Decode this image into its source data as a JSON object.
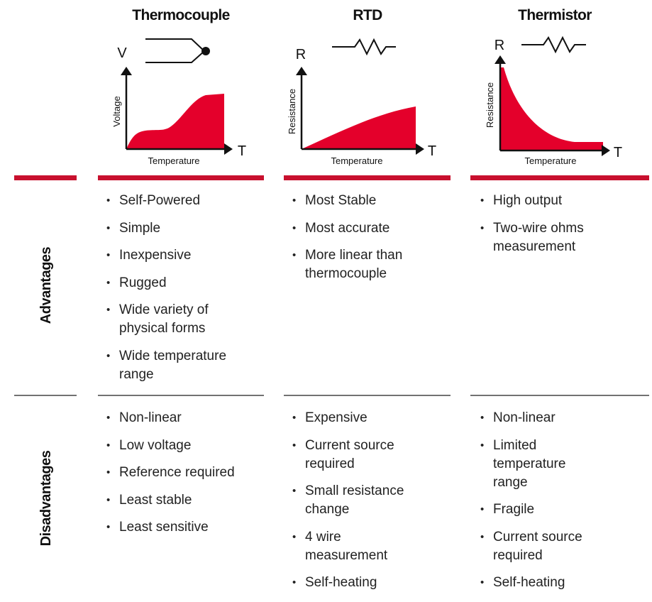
{
  "columns": [
    {
      "title": "Thermocouple",
      "icon": {
        "y_label": "V",
        "x_label": "T",
        "y_axis_title": "Voltage",
        "x_axis_title": "Temperature"
      },
      "advantages": [
        "Self-Powered",
        "Simple",
        "Inexpensive",
        "Rugged",
        "Wide variety of\nphysical forms",
        "Wide temperature\nrange"
      ],
      "disadvantages": [
        "Non-linear",
        "Low voltage",
        "Reference required",
        "Least stable",
        "Least sensitive"
      ]
    },
    {
      "title": "RTD",
      "icon": {
        "y_label": "R",
        "x_label": "T",
        "y_axis_title": "Resistance",
        "x_axis_title": "Temperature"
      },
      "advantages": [
        "Most Stable",
        "Most accurate",
        "More linear than\nthermocouple"
      ],
      "disadvantages": [
        "Expensive",
        "Current source\nrequired",
        "Small resistance\nchange",
        "4 wire\nmeasurement",
        "Self-heating"
      ]
    },
    {
      "title": "Thermistor",
      "icon": {
        "y_label": "R",
        "x_label": "T",
        "y_axis_title": "Resistance",
        "x_axis_title": "Temperature"
      },
      "advantages": [
        "High output",
        "Two-wire ohms\nmeasurement"
      ],
      "disadvantages": [
        "Non-linear",
        "Limited\ntemperature\nrange",
        "Fragile",
        "Current source\nrequired",
        "Self-heating"
      ]
    }
  ],
  "rows": [
    "Advantages",
    "Disadvantages"
  ]
}
